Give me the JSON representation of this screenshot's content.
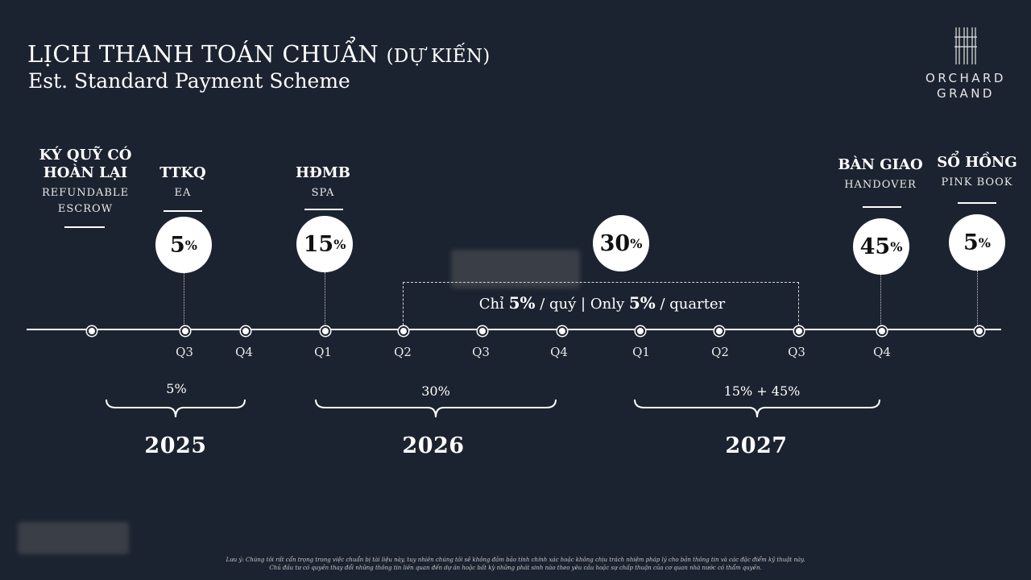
{
  "header": {
    "title_main": "LỊCH THANH TOÁN CHUẨN",
    "title_paren": "(DỰ KIẾN)",
    "subtitle": "Est. Standard Payment Scheme"
  },
  "logo": {
    "line1": "ORCHARD",
    "line2": "GRAND",
    "icon": "orchard-grand-monogram-icon"
  },
  "milestones": [
    {
      "vi_line1": "KÝ QUỸ CÓ",
      "vi_line2": "HOÀN LẠI",
      "en_line1": "REFUNDABLE",
      "en_line2": "ESCROW"
    },
    {
      "vi_line1": "TTKQ",
      "en_line1": "EA",
      "percent": "5",
      "percent_sign": "%"
    },
    {
      "vi_line1": "HĐMB",
      "en_line1": "SPA",
      "percent": "15",
      "percent_sign": "%"
    },
    {
      "percent": "30",
      "percent_sign": "%"
    },
    {
      "vi_line1": "BÀN GIAO",
      "en_line1": "HANDOVER",
      "percent": "45",
      "percent_sign": "%"
    },
    {
      "vi_line1": "SỔ HỒNG",
      "en_line1": "PINK BOOK",
      "percent": "5",
      "percent_sign": "%"
    }
  ],
  "installment_note": {
    "pre": "Chỉ ",
    "value1": "5%",
    "mid": " / quý | Only ",
    "value2": "5%",
    "post": " / quarter"
  },
  "quarters": [
    "Q3",
    "Q4",
    "Q1",
    "Q2",
    "Q3",
    "Q4",
    "Q1",
    "Q2",
    "Q3",
    "Q4"
  ],
  "groups": [
    {
      "year": "2025",
      "percent": "5%"
    },
    {
      "year": "2026",
      "percent": "30%"
    },
    {
      "year": "2027",
      "percent": "15% + 45%"
    }
  ],
  "disclaimer": {
    "line1": "Lưu ý: Chúng tôi rất cẩn trọng trong việc chuẩn bị tài liệu này, tuy nhiên chúng tôi sẽ không đảm bảo tính chính xác hoặc không chịu trách nhiệm pháp lý cho bản thông tin và các đặc điểm kỹ thuật này.",
    "line2": "Chủ đầu tư có quyền thay đổi những thông tin liên quan đến dự án hoặc bất kỳ những phát sinh nào theo yêu cầu hoặc sự chấp thuận của cơ quan nhà nước có thẩm quyền."
  },
  "colors": {
    "background": "#1c2330",
    "foreground": "#ffffff",
    "circle_text": "#111111"
  }
}
